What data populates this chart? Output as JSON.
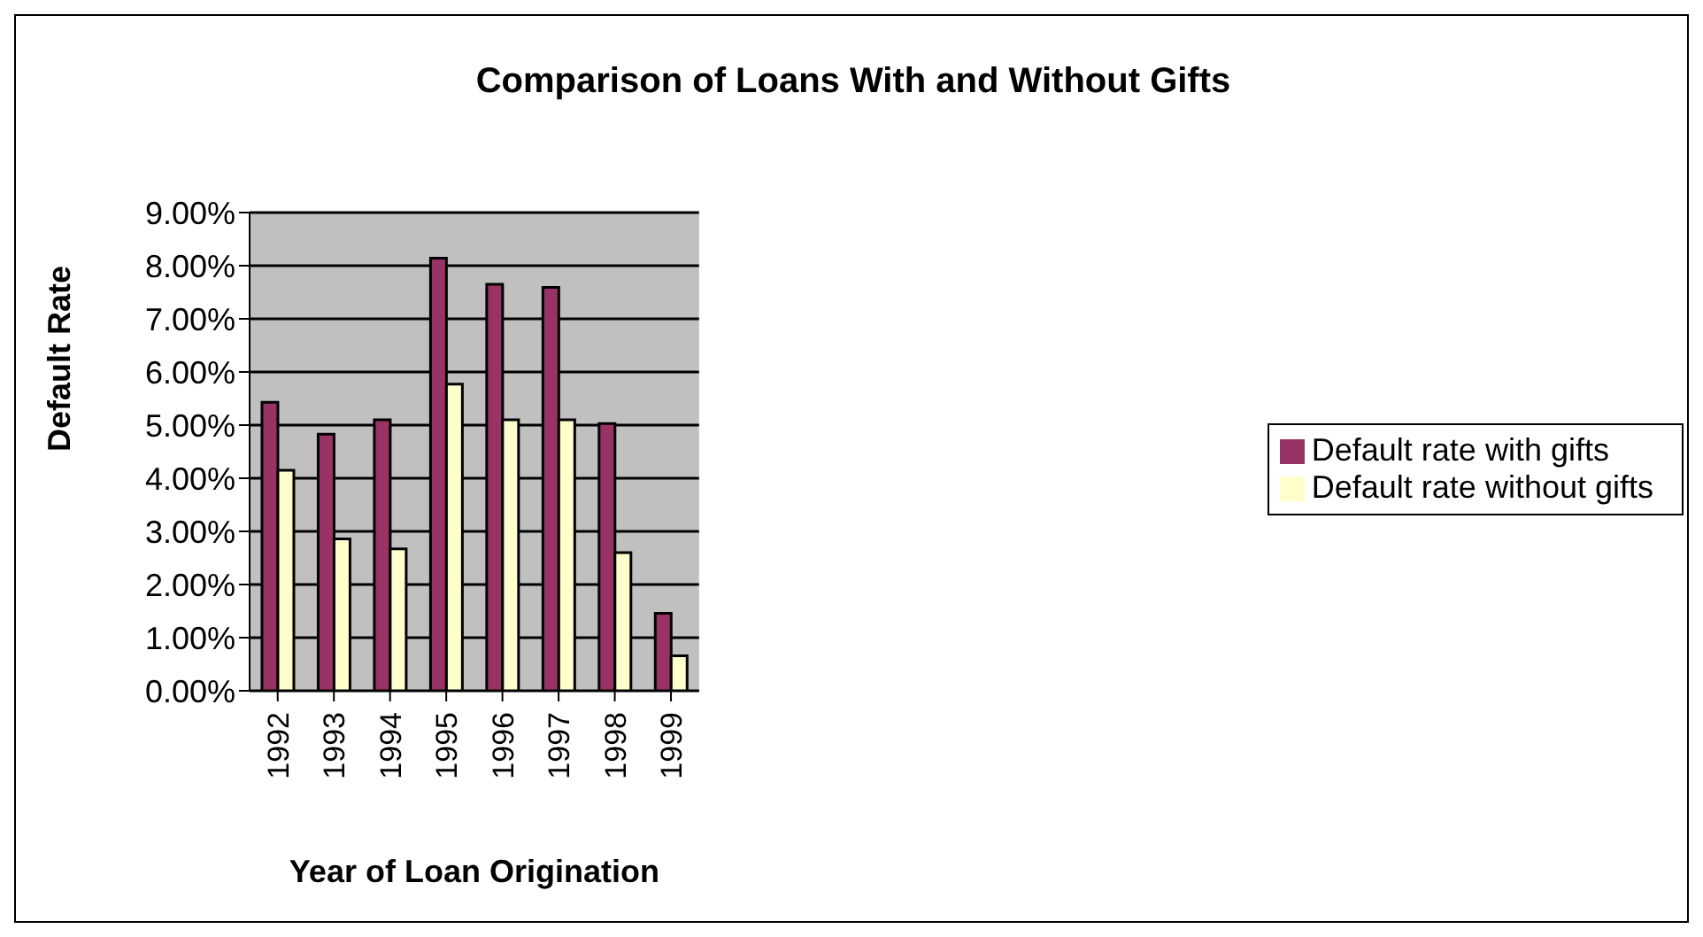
{
  "chart_data": {
    "type": "bar",
    "title": "Comparison of Loans With and Without Gifts",
    "xlabel": "Year of Loan Origination",
    "ylabel": "Default Rate",
    "categories": [
      "1992",
      "1993",
      "1994",
      "1995",
      "1996",
      "1997",
      "1998",
      "1999"
    ],
    "series": [
      {
        "name": "Default rate with gifts",
        "color": "#993366",
        "values": [
          5.43,
          4.83,
          5.1,
          8.14,
          7.65,
          7.59,
          5.03,
          1.46
        ]
      },
      {
        "name": "Default rate without gifts",
        "color": "#ffffcc",
        "values": [
          4.15,
          2.86,
          2.67,
          5.77,
          5.1,
          5.1,
          2.6,
          0.66
        ]
      }
    ],
    "ylim": [
      0,
      9
    ],
    "yticks": [
      {
        "value": 0,
        "label": "0.00%"
      },
      {
        "value": 1,
        "label": "1.00%"
      },
      {
        "value": 2,
        "label": "2.00%"
      },
      {
        "value": 3,
        "label": "3.00%"
      },
      {
        "value": 4,
        "label": "4.00%"
      },
      {
        "value": 5,
        "label": "5.00%"
      },
      {
        "value": 6,
        "label": "6.00%"
      },
      {
        "value": 7,
        "label": "7.00%"
      },
      {
        "value": 8,
        "label": "8.00%"
      },
      {
        "value": 9,
        "label": "9.00%"
      }
    ],
    "grid": "y",
    "legend": "right"
  }
}
